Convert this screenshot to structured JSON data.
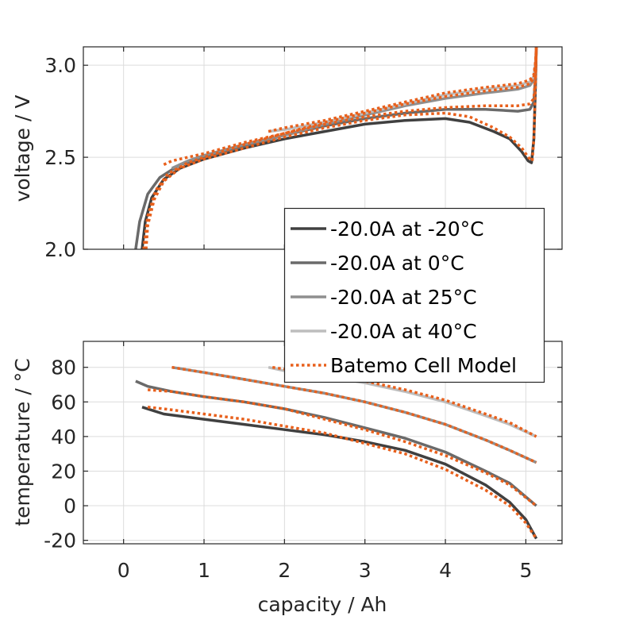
{
  "chart_data": [
    {
      "type": "line",
      "id": "voltage",
      "title": "",
      "xlabel": "",
      "ylabel": "voltage / V",
      "xlim": [
        -0.5,
        5.45
      ],
      "ylim": [
        2.0,
        3.1
      ],
      "xticks": [
        0,
        1,
        2,
        3,
        4,
        5
      ],
      "yticks": [
        2.0,
        2.5,
        3.0
      ],
      "ytick_labels": [
        "2.0",
        "2.5",
        "3.0"
      ],
      "grid": true,
      "series": [
        {
          "name": "-20.0A at -20°C",
          "color": "#404040",
          "style": "solid",
          "x": [
            0.23,
            0.27,
            0.35,
            0.5,
            0.7,
            1.0,
            1.5,
            2.0,
            2.5,
            3.0,
            3.5,
            4.0,
            4.3,
            4.6,
            4.8,
            4.95,
            5.03,
            5.07,
            5.1,
            5.12,
            5.13
          ],
          "y": [
            2.0,
            2.15,
            2.28,
            2.38,
            2.44,
            2.49,
            2.55,
            2.6,
            2.64,
            2.68,
            2.7,
            2.71,
            2.69,
            2.64,
            2.6,
            2.53,
            2.48,
            2.47,
            2.6,
            2.9,
            3.1
          ]
        },
        {
          "name": "-20.0A at 0°C",
          "color": "#6a6a6a",
          "style": "solid",
          "x": [
            0.15,
            0.2,
            0.3,
            0.45,
            0.7,
            1.0,
            1.5,
            2.0,
            2.5,
            3.0,
            3.5,
            4.0,
            4.5,
            4.9,
            5.05,
            5.1,
            5.12,
            5.13
          ],
          "y": [
            2.0,
            2.15,
            2.3,
            2.39,
            2.46,
            2.5,
            2.56,
            2.62,
            2.67,
            2.71,
            2.74,
            2.76,
            2.76,
            2.75,
            2.76,
            2.8,
            2.95,
            3.1
          ]
        },
        {
          "name": "-20.0A at 25°C",
          "color": "#8f8f8f",
          "style": "solid",
          "x": [
            0.6,
            0.8,
            1.0,
            1.5,
            2.0,
            2.5,
            3.0,
            3.5,
            4.0,
            4.5,
            4.9,
            5.05,
            5.1,
            5.12,
            5.13
          ],
          "y": [
            2.44,
            2.48,
            2.51,
            2.57,
            2.62,
            2.68,
            2.73,
            2.78,
            2.82,
            2.85,
            2.87,
            2.89,
            2.92,
            3.0,
            3.1
          ]
        },
        {
          "name": "-20.0A at 40°C",
          "color": "#bdbdbd",
          "style": "solid",
          "x": [
            1.8,
            2.0,
            2.5,
            3.0,
            3.5,
            4.0,
            4.5,
            4.9,
            5.05,
            5.1,
            5.12,
            5.13
          ],
          "y": [
            2.64,
            2.65,
            2.69,
            2.74,
            2.79,
            2.84,
            2.87,
            2.89,
            2.91,
            2.94,
            3.02,
            3.1
          ]
        },
        {
          "name": "Batemo Cell Model (-20°C)",
          "color": "#e8601c",
          "style": "dotted",
          "legend": false,
          "x": [
            0.28,
            0.3,
            0.38,
            0.5,
            0.7,
            1.0,
            1.5,
            2.0,
            2.5,
            3.0,
            3.5,
            4.0,
            4.3,
            4.6,
            4.8,
            4.95,
            5.03,
            5.08,
            5.1,
            5.12,
            5.13
          ],
          "y": [
            2.0,
            2.13,
            2.27,
            2.37,
            2.44,
            2.49,
            2.55,
            2.61,
            2.66,
            2.7,
            2.73,
            2.74,
            2.72,
            2.66,
            2.61,
            2.55,
            2.5,
            2.48,
            2.6,
            2.9,
            3.1
          ]
        },
        {
          "name": "Batemo Cell Model (0°C)",
          "color": "#e8601c",
          "style": "dotted",
          "legend": false,
          "x": [
            0.25,
            0.3,
            0.4,
            0.55,
            0.8,
            1.0,
            1.5,
            2.0,
            2.5,
            3.0,
            3.5,
            4.0,
            4.5,
            4.9,
            5.05,
            5.1,
            5.12,
            5.13
          ],
          "y": [
            2.0,
            2.18,
            2.32,
            2.41,
            2.47,
            2.5,
            2.57,
            2.63,
            2.68,
            2.72,
            2.75,
            2.77,
            2.78,
            2.78,
            2.79,
            2.82,
            2.95,
            3.1
          ]
        },
        {
          "name": "Batemo Cell Model (25°C)",
          "color": "#e8601c",
          "style": "dotted",
          "legend": false,
          "x": [
            0.5,
            0.6,
            0.8,
            1.0,
            1.5,
            2.0,
            2.5,
            3.0,
            3.5,
            4.0,
            4.5,
            4.9,
            5.05,
            5.1,
            5.12,
            5.13
          ],
          "y": [
            2.46,
            2.48,
            2.5,
            2.52,
            2.58,
            2.63,
            2.69,
            2.74,
            2.79,
            2.83,
            2.86,
            2.88,
            2.9,
            2.93,
            3.0,
            3.1
          ]
        },
        {
          "name": "Batemo Cell Model (40°C)",
          "color": "#e8601c",
          "style": "dotted",
          "legend": false,
          "x": [
            1.8,
            2.0,
            2.5,
            3.0,
            3.5,
            4.0,
            4.5,
            4.9,
            5.05,
            5.1,
            5.12,
            5.13
          ],
          "y": [
            2.64,
            2.66,
            2.7,
            2.75,
            2.8,
            2.85,
            2.88,
            2.9,
            2.92,
            2.95,
            3.02,
            3.1
          ]
        }
      ]
    },
    {
      "type": "line",
      "id": "temperature",
      "title": "",
      "xlabel": "capacity / Ah",
      "ylabel": "temperature / °C",
      "xlim": [
        -0.5,
        5.45
      ],
      "ylim": [
        -22,
        95
      ],
      "xticks": [
        0,
        1,
        2,
        3,
        4,
        5
      ],
      "xtick_labels": [
        "0",
        "1",
        "2",
        "3",
        "4",
        "5"
      ],
      "yticks": [
        -20,
        0,
        20,
        40,
        60,
        80
      ],
      "ytick_labels": [
        "-20",
        "0",
        "20",
        "40",
        "60",
        "80"
      ],
      "grid": true,
      "series": [
        {
          "name": "-20.0A at -20°C",
          "color": "#404040",
          "style": "solid",
          "x": [
            0.23,
            0.5,
            1.0,
            1.5,
            2.0,
            2.5,
            3.0,
            3.5,
            4.0,
            4.5,
            4.8,
            5.0,
            5.13
          ],
          "y": [
            57,
            53,
            50,
            47,
            44,
            41,
            37,
            32,
            24,
            12,
            2,
            -8,
            -19
          ]
        },
        {
          "name": "-20.0A at 0°C",
          "color": "#6a6a6a",
          "style": "solid",
          "x": [
            0.15,
            0.3,
            0.6,
            1.0,
            1.5,
            2.0,
            2.5,
            3.0,
            3.5,
            4.0,
            4.5,
            4.8,
            5.13
          ],
          "y": [
            72,
            69,
            66,
            63,
            60,
            56,
            51,
            45,
            39,
            31,
            20,
            13,
            0
          ]
        },
        {
          "name": "-20.0A at 25°C",
          "color": "#8f8f8f",
          "style": "solid",
          "x": [
            0.6,
            1.0,
            1.5,
            2.0,
            2.5,
            3.0,
            3.5,
            4.0,
            4.5,
            4.8,
            5.13
          ],
          "y": [
            80,
            77,
            73,
            69,
            65,
            60,
            54,
            47,
            38,
            32,
            25
          ]
        },
        {
          "name": "-20.0A at 40°C",
          "color": "#bdbdbd",
          "style": "solid",
          "x": [
            1.8,
            2.0,
            2.5,
            3.0,
            3.5,
            4.0,
            4.5,
            4.8,
            5.13
          ],
          "y": [
            80,
            78,
            75,
            71,
            66,
            60,
            52,
            47,
            40
          ]
        },
        {
          "name": "Batemo Cell Model (-20°C)",
          "color": "#e8601c",
          "style": "dotted",
          "legend": false,
          "x": [
            0.3,
            0.5,
            1.0,
            1.5,
            2.0,
            2.5,
            3.0,
            3.5,
            4.0,
            4.5,
            4.8,
            5.0,
            5.13
          ],
          "y": [
            57,
            56,
            53,
            50,
            46,
            42,
            36,
            30,
            21,
            9,
            0,
            -10,
            -19
          ]
        },
        {
          "name": "Batemo Cell Model (0°C)",
          "color": "#e8601c",
          "style": "dotted",
          "legend": false,
          "x": [
            0.3,
            0.6,
            1.0,
            1.5,
            2.0,
            2.5,
            3.0,
            3.5,
            4.0,
            4.5,
            4.8,
            5.13
          ],
          "y": [
            67,
            66,
            63,
            60,
            56,
            50,
            44,
            37,
            29,
            19,
            12,
            0
          ]
        },
        {
          "name": "Batemo Cell Model (25°C)",
          "color": "#e8601c",
          "style": "dotted",
          "legend": false,
          "x": [
            0.6,
            1.0,
            1.5,
            2.0,
            2.5,
            3.0,
            3.5,
            4.0,
            4.5,
            4.8,
            5.13
          ],
          "y": [
            80,
            77,
            73,
            69,
            65,
            60,
            54,
            47,
            38,
            32,
            25
          ]
        },
        {
          "name": "Batemo Cell Model (40°C)",
          "color": "#e8601c",
          "style": "dotted",
          "legend": false,
          "x": [
            1.85,
            2.0,
            2.5,
            3.0,
            3.5,
            4.0,
            4.5,
            4.8,
            5.13
          ],
          "y": [
            80,
            79,
            75,
            72,
            67,
            61,
            53,
            48,
            40
          ]
        }
      ]
    }
  ],
  "legend": {
    "placement": "center-right",
    "entries": [
      {
        "label": "-20.0A at -20°C",
        "color": "#404040",
        "style": "solid"
      },
      {
        "label": "-20.0A at 0°C",
        "color": "#6a6a6a",
        "style": "solid"
      },
      {
        "label": "-20.0A at 25°C",
        "color": "#8f8f8f",
        "style": "solid"
      },
      {
        "label": "-20.0A at 40°C",
        "color": "#bdbdbd",
        "style": "solid"
      },
      {
        "label": "Batemo Cell Model",
        "color": "#e8601c",
        "style": "dotted"
      }
    ]
  }
}
